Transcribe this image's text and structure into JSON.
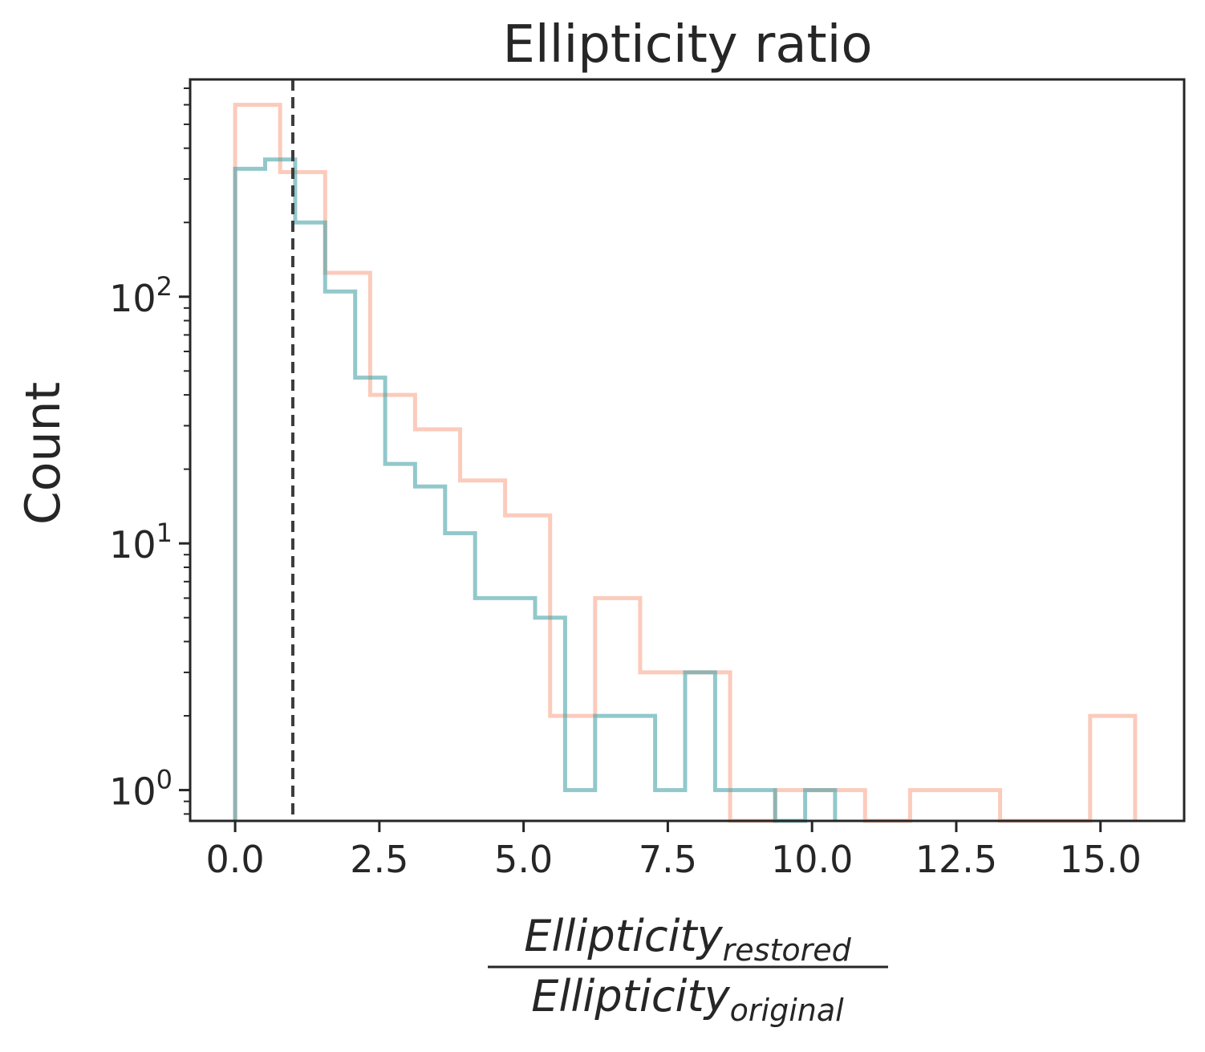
{
  "chart_data": {
    "type": "histogram-step",
    "title": "Ellipticity ratio",
    "ylabel": "Count",
    "xlabel_numerator": {
      "base": "Ellipticity",
      "sub": "restored"
    },
    "xlabel_denominator": {
      "base": "Ellipticity",
      "sub": "original"
    },
    "xlim": [
      -0.78,
      16.45
    ],
    "ylim": [
      0.75,
      760
    ],
    "yscale": "log",
    "x_ticks": [
      0,
      2.5,
      5,
      7.5,
      10,
      12.5,
      15
    ],
    "x_tick_labels": [
      "0.0",
      "2.5",
      "5.0",
      "7.5",
      "10.0",
      "12.5",
      "15.0"
    ],
    "y_ticks": [
      1,
      10,
      100
    ],
    "y_tick_labels": [
      {
        "base": "10",
        "exp": "0"
      },
      {
        "base": "10",
        "exp": "1"
      },
      {
        "base": "10",
        "exp": "2"
      }
    ],
    "reference_line": {
      "x": 1.0,
      "style": "dashed",
      "color": "#3d3d3d"
    },
    "grid": false,
    "legend": "none",
    "series": [
      {
        "color": "#f9a88f",
        "bin_edges": [
          0,
          0.78,
          1.56,
          2.34,
          3.12,
          3.9,
          4.68,
          5.46,
          6.24,
          7.02,
          7.8,
          8.58,
          9.36,
          10.14,
          10.92,
          11.7,
          12.48,
          13.26,
          14.04,
          14.82,
          15.6
        ],
        "counts": [
          600,
          320,
          125,
          40,
          29,
          18,
          13,
          2,
          6,
          3,
          3,
          0,
          1,
          1,
          0,
          1,
          1,
          0,
          0,
          2
        ]
      },
      {
        "color": "#4aa4a8",
        "bin_edges": [
          0,
          0.52,
          1.04,
          1.56,
          2.08,
          2.6,
          3.12,
          3.64,
          4.16,
          4.68,
          5.2,
          5.72,
          6.24,
          6.76,
          7.28,
          7.8,
          8.32,
          8.84,
          9.36,
          9.88,
          10.4
        ],
        "counts": [
          330,
          360,
          200,
          105,
          47,
          21,
          17,
          11,
          6,
          6,
          5,
          1,
          2,
          2,
          1,
          3,
          1,
          1,
          0,
          1
        ]
      }
    ]
  }
}
